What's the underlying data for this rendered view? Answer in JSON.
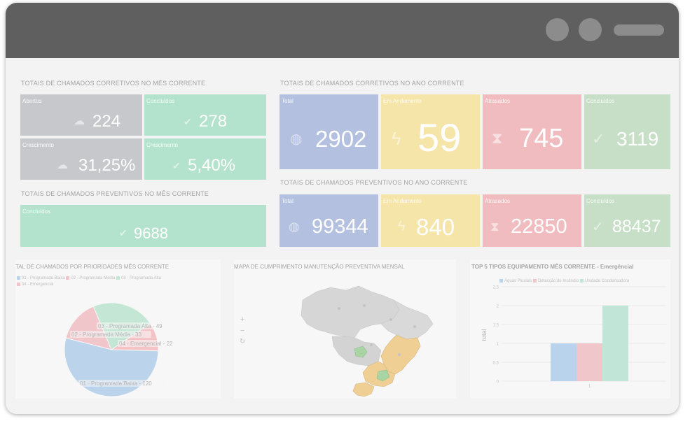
{
  "colors": {
    "gray": "#c6c8cb",
    "green": "#b3e3cc",
    "blue": "#b3c0e0",
    "yellow": "#f5e5a8",
    "red": "#f0bcc0",
    "lightgreen": "#c6dfc6"
  },
  "monthly_corrective": {
    "title": "TOTAIS DE CHAMADOS CORRETIVOS NO MÊS CORRENTE",
    "abertos": {
      "label": "Abertos",
      "value": "224",
      "icon": "cloud-icon"
    },
    "concluidos": {
      "label": "Concluídos",
      "value": "278",
      "icon": "check-circle-icon"
    },
    "crescimento_abertos": {
      "label": "Crescimento",
      "value": "31,25%",
      "icon": "cloud-icon"
    },
    "crescimento_concluidos": {
      "label": "Crescimento",
      "value": "5,40%",
      "icon": "check-circle-icon"
    }
  },
  "monthly_preventive": {
    "title": "TOTAIS DE CHAMADOS PREVENTIVOS NO MÊS CORRENTE",
    "concluidos": {
      "label": "Concluídos",
      "value": "9688",
      "icon": "check-circle-icon"
    }
  },
  "yearly_corrective": {
    "title": "TOTAIS DE CHAMADOS CORRETIVOS NO ANO CORRENTE",
    "total": {
      "label": "Total",
      "value": "2902",
      "icon": "globe-icon"
    },
    "andamento": {
      "label": "Em Andamento",
      "value": "59",
      "icon": "bolt-icon"
    },
    "atrasados": {
      "label": "Atrasados",
      "value": "745",
      "icon": "hourglass-icon"
    },
    "concluidos": {
      "label": "Concluídos",
      "value": "3119",
      "icon": "check-icon"
    }
  },
  "yearly_preventive": {
    "title": "TOTAIS DE CHAMADOS PREVENTIVOS NO ANO CORRENTE",
    "total": {
      "label": "Total",
      "value": "99344",
      "icon": "globe-icon"
    },
    "andamento": {
      "label": "Em Andamento",
      "value": "840",
      "icon": "bolt-icon"
    },
    "atrasados": {
      "label": "Atrasados",
      "value": "22850",
      "icon": "hourglass-icon"
    },
    "concluidos": {
      "label": "Concluídos",
      "value": "88437",
      "icon": "check-icon"
    }
  },
  "priority_chart": {
    "title": "TAL DE CHAMADOS POR PRIORIDADES MÊS CORRENTE",
    "legend": [
      "01 - Programada Baixa",
      "02 - Programada Média",
      "03 - Programada Alta",
      "04 - Emergencial"
    ],
    "slices": [
      {
        "label": "01 - Programada Baixa - 120",
        "value": 120,
        "color": "#bcd3ec"
      },
      {
        "label": "02 - Programada Média - 33",
        "value": 33,
        "color": "#f1c6ca"
      },
      {
        "label": "03 - Programada Alta - 49",
        "value": 49,
        "color": "#c4e6d5"
      },
      {
        "label": "04 - Emergencial - 22",
        "value": 22,
        "color": "#f4c3c6"
      }
    ]
  },
  "map": {
    "title": "MAPA DE CUMPRIMENTO MANUTENÇÃO PREVENTIVA MENSAL",
    "zoom_in": "+",
    "zoom_out": "−",
    "reset": "↻"
  },
  "chart_data": {
    "type": "bar",
    "title": "TOP 5 TIPOS EQUIPAMENTO MÊS CORRENTE - Emergêncial",
    "ylabel": "total",
    "xlabel": "",
    "categories": [
      "1"
    ],
    "series": [
      {
        "name": "Águas Pluviais",
        "values": [
          1
        ],
        "color": "#b9d3ec"
      },
      {
        "name": "Detecção de Incêndio",
        "values": [
          1
        ],
        "color": "#f1c6ca"
      },
      {
        "name": "Unidade Condensadora",
        "values": [
          2
        ],
        "color": "#c1e5d6"
      }
    ],
    "ylim": [
      0,
      2.5
    ],
    "yticks": [
      "0",
      "0.5",
      "1",
      "1.5",
      "2",
      "2.5"
    ],
    "grid": true,
    "legend_position": "top"
  }
}
